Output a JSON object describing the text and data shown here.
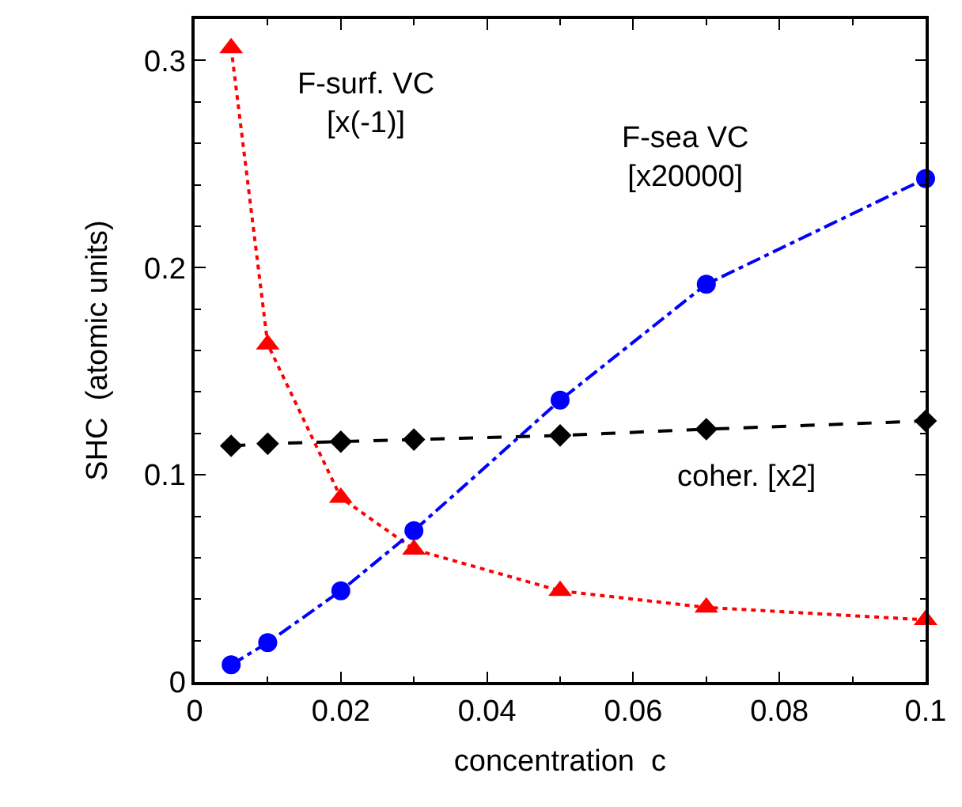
{
  "chart_data": {
    "type": "line",
    "xlabel": "concentration  c",
    "ylabel": "SHC  (atomic units)",
    "x": [
      0.005,
      0.01,
      0.02,
      0.03,
      0.05,
      0.07,
      0.1
    ],
    "series": [
      {
        "name": "F-surf. VC\n[x(-1)]",
        "color": "#ff0000",
        "marker": "triangle",
        "line_style": "dotted",
        "values": [
          0.306,
          0.163,
          0.089,
          0.064,
          0.044,
          0.036,
          0.03
        ]
      },
      {
        "name": "F-sea VC\n[x20000]",
        "color": "#0000ff",
        "marker": "circle",
        "line_style": "dashdot",
        "values": [
          0.0083,
          0.019,
          0.044,
          0.073,
          0.136,
          0.192,
          0.243
        ]
      },
      {
        "name": "coher. [x2]",
        "color": "#000000",
        "marker": "diamond",
        "line_style": "dashed",
        "values": [
          0.114,
          0.115,
          0.116,
          0.117,
          0.119,
          0.122,
          0.126
        ]
      }
    ],
    "xlim": [
      0,
      0.1
    ],
    "ylim": [
      0,
      0.32
    ],
    "xticks": [
      {
        "value": 0,
        "label": "0"
      },
      0.02,
      0.04,
      0.06,
      0.08,
      {
        "value": 0.1,
        "label": "0.1"
      }
    ],
    "yticks": [
      {
        "value": 0,
        "label": "0"
      },
      0.1,
      0.2,
      0.3
    ],
    "legend": false
  }
}
